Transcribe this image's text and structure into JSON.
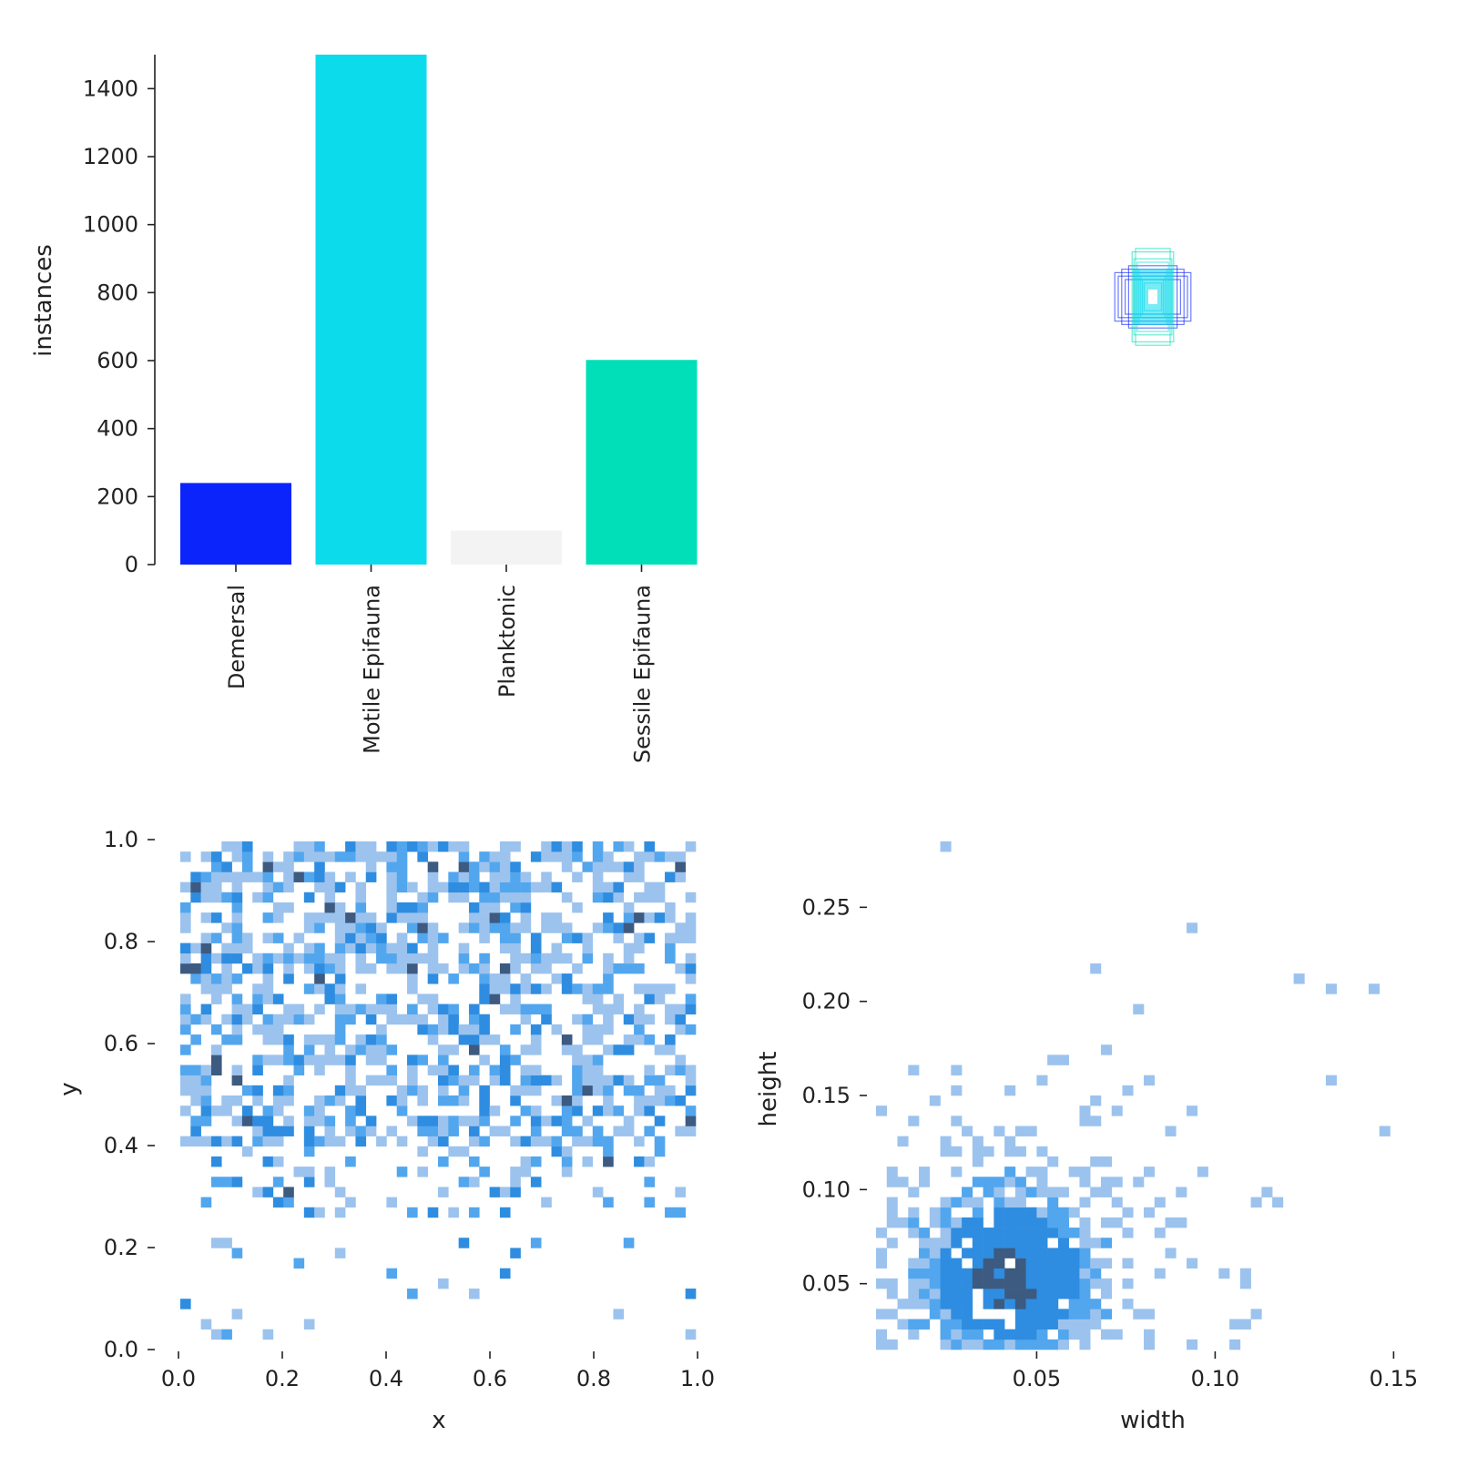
{
  "chart_data": [
    {
      "type": "bar",
      "categories": [
        "Demersal",
        "Motile Epifauna",
        "Planktonic",
        "Sessile Epifauna"
      ],
      "values": [
        240,
        1500,
        100,
        602
      ],
      "colors": [
        "#0b24fb",
        "#0bdbeb",
        "#f3f3f3",
        "#00dfb7"
      ],
      "ylabel": "instances",
      "ylim": [
        0,
        1500
      ],
      "yticks": [
        0,
        200,
        400,
        600,
        800,
        1000,
        1200,
        1400
      ],
      "ytick_labels": [
        "0",
        "200",
        "400",
        "600",
        "800",
        "1000",
        "1200",
        "1400"
      ]
    },
    {
      "type": "box_overlay",
      "description_values": {
        "center": [
          0.5,
          0.5
        ],
        "boxes": [
          {
            "w": 0.22,
            "h": 0.14,
            "color": "#0b24fb"
          },
          {
            "w": 0.2,
            "h": 0.12,
            "color": "#0b24fb"
          },
          {
            "w": 0.18,
            "h": 0.16,
            "color": "#0b24fb"
          },
          {
            "w": 0.16,
            "h": 0.1,
            "color": "#0b24fb"
          },
          {
            "w": 0.14,
            "h": 0.18,
            "color": "#0b24fb"
          },
          {
            "w": 0.12,
            "h": 0.26,
            "color": "#00dfb7"
          },
          {
            "w": 0.1,
            "h": 0.28,
            "color": "#00dfb7"
          },
          {
            "w": 0.11,
            "h": 0.22,
            "color": "#00dfb7"
          },
          {
            "w": 0.09,
            "h": 0.2,
            "color": "#0bdbeb"
          },
          {
            "w": 0.08,
            "h": 0.16,
            "color": "#0bdbeb"
          },
          {
            "w": 0.07,
            "h": 0.12,
            "color": "#0bdbeb"
          },
          {
            "w": 0.06,
            "h": 0.1,
            "color": "#0bdbeb"
          },
          {
            "w": 0.05,
            "h": 0.08,
            "color": "#0bdbeb"
          }
        ]
      }
    },
    {
      "type": "heatmap",
      "xlabel": "x",
      "ylabel": "y",
      "xlim": [
        0,
        1
      ],
      "ylim": [
        0,
        1
      ],
      "xticks": [
        "0.0",
        "0.2",
        "0.4",
        "0.6",
        "0.8",
        "1.0"
      ],
      "yticks": [
        "0.0",
        "0.2",
        "0.4",
        "0.6",
        "0.8",
        "1.0"
      ],
      "bins": 50,
      "palette": [
        "#9cc3ee",
        "#52a6ee",
        "#2e8de0",
        "#3d5a80"
      ]
    },
    {
      "type": "heatmap",
      "xlabel": "width",
      "ylabel": "height",
      "xlim": [
        0.005,
        0.155
      ],
      "ylim": [
        0.015,
        0.285
      ],
      "xticks": [
        "0.05",
        "0.10",
        "0.15"
      ],
      "yticks": [
        "0.05",
        "0.10",
        "0.15",
        "0.20",
        "0.25"
      ],
      "bins": 50,
      "palette": [
        "#9cc3ee",
        "#52a6ee",
        "#2e8de0",
        "#3d5a80"
      ]
    }
  ]
}
